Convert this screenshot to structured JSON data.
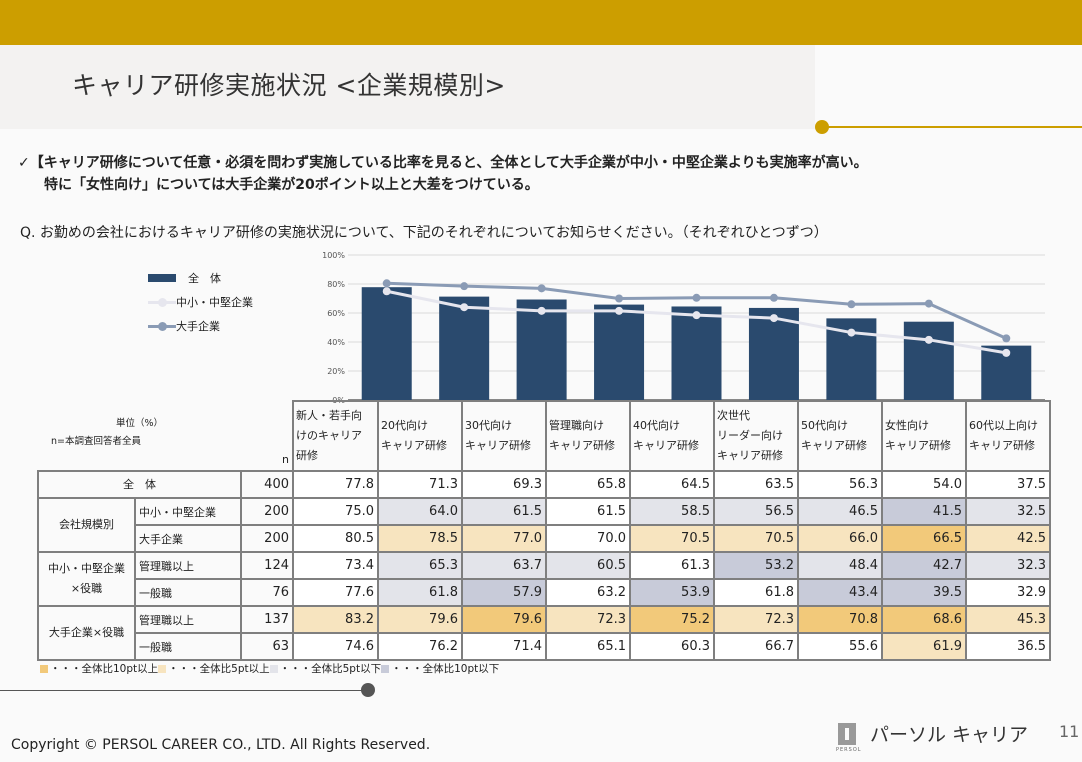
{
  "header": {
    "title": "キャリア研修実施状況 <企業規模別>"
  },
  "summary": {
    "line1": "✓【キャリア研修について任意・必須を問わず実施している比率を見ると、全体として大手企業が中小・中堅企業よりも実施率が高い。",
    "line2": "特に「女性向け」については大手企業が20ポイント以上と大差をつけている。"
  },
  "question": "Q.  お勤めの会社におけるキャリア研修の実施状況について、下記のそれぞれについてお知らせください。（それぞれひとつずつ）",
  "colors": {
    "bar": "#2a4a6e",
    "sme_line": "#e6e6ee",
    "large_line": "#8a9bb5",
    "above10": "#f2c97a",
    "above5": "#f7e4bf",
    "below5": "#e3e4ea",
    "below10": "#c8cbd9",
    "accent": "#cc9e00"
  },
  "chart_data": {
    "type": "bar",
    "categories": [
      "新人・若手向けのキャリア研修",
      "20代向けキャリア研修",
      "30代向けキャリア研修",
      "管理職向けキャリア研修",
      "40代向けキャリア研修",
      "次世代リーダー向けキャリア研修",
      "50代向けキャリア研修",
      "女性向けキャリア研修",
      "60代以上向けキャリア研修"
    ],
    "series": [
      {
        "name": "全　体",
        "kind": "bar",
        "values": [
          77.8,
          71.3,
          69.3,
          65.8,
          64.5,
          63.5,
          56.3,
          54.0,
          37.5
        ]
      },
      {
        "name": "中小・中堅企業",
        "kind": "line",
        "values": [
          75.0,
          64.0,
          61.5,
          61.5,
          58.5,
          56.5,
          46.5,
          41.5,
          32.5
        ]
      },
      {
        "name": "大手企業",
        "kind": "line",
        "values": [
          80.5,
          78.5,
          77.0,
          70.0,
          70.5,
          70.5,
          66.0,
          66.5,
          42.5
        ]
      }
    ],
    "yticks": [
      "0%",
      "20%",
      "40%",
      "60%",
      "80%",
      "100%"
    ],
    "ylim": [
      0,
      100
    ],
    "grid": true,
    "legend": "top-left"
  },
  "table": {
    "unit_label": "単位（%）",
    "n_note": "n=本調査回答者全員",
    "n_header": "n",
    "columns": [
      [
        "新人・若手向",
        "けのキャリア",
        "研修"
      ],
      [
        "20代向け",
        "キャリア研修"
      ],
      [
        "30代向け",
        "キャリア研修"
      ],
      [
        "管理職向け",
        "キャリア研修"
      ],
      [
        "40代向け",
        "キャリア研修"
      ],
      [
        "次世代",
        "リーダー向け",
        "キャリア研修"
      ],
      [
        "50代向け",
        "キャリア研修"
      ],
      [
        "女性向け",
        "キャリア研修"
      ],
      [
        "60代以上向け",
        "キャリア研修"
      ]
    ],
    "groups": {
      "total": "全　体",
      "size": "会社規模別",
      "sme_role": [
        "中小・中堅企業",
        "×役職"
      ],
      "large_role": "大手企業×役職"
    },
    "rows": [
      {
        "label": "全　体",
        "n": "400",
        "values": [
          "77.8",
          "71.3",
          "69.3",
          "65.8",
          "64.5",
          "63.5",
          "56.3",
          "54.0",
          "37.5"
        ],
        "shade": [
          "w",
          "w",
          "w",
          "w",
          "w",
          "w",
          "w",
          "w",
          "w"
        ]
      },
      {
        "label": "中小・中堅企業",
        "n": "200",
        "values": [
          "75.0",
          "64.0",
          "61.5",
          "61.5",
          "58.5",
          "56.5",
          "46.5",
          "41.5",
          "32.5"
        ],
        "shade": [
          "w",
          "d5",
          "d5",
          "w",
          "d5",
          "d5",
          "d5",
          "d10",
          "d5"
        ]
      },
      {
        "label": "大手企業",
        "n": "200",
        "values": [
          "80.5",
          "78.5",
          "77.0",
          "70.0",
          "70.5",
          "70.5",
          "66.0",
          "66.5",
          "42.5"
        ],
        "shade": [
          "w",
          "u5",
          "u5",
          "w",
          "u5",
          "u5",
          "u5",
          "u10",
          "u5"
        ]
      },
      {
        "label": "管理職以上",
        "n": "124",
        "values": [
          "73.4",
          "65.3",
          "63.7",
          "60.5",
          "61.3",
          "53.2",
          "48.4",
          "42.7",
          "32.3"
        ],
        "shade": [
          "w",
          "d5",
          "d5",
          "d5",
          "w",
          "d10",
          "d5",
          "d10",
          "d5"
        ]
      },
      {
        "label": "一般職",
        "n": "76",
        "values": [
          "77.6",
          "61.8",
          "57.9",
          "63.2",
          "53.9",
          "61.8",
          "43.4",
          "39.5",
          "32.9"
        ],
        "shade": [
          "w",
          "d5",
          "d10",
          "w",
          "d10",
          "w",
          "d10",
          "d10",
          "w"
        ]
      },
      {
        "label": "管理職以上",
        "n": "137",
        "values": [
          "83.2",
          "79.6",
          "79.6",
          "72.3",
          "75.2",
          "72.3",
          "70.8",
          "68.6",
          "45.3"
        ],
        "shade": [
          "u5",
          "u5",
          "u10",
          "u5",
          "u10",
          "u5",
          "u10",
          "u10",
          "u5"
        ]
      },
      {
        "label": "一般職",
        "n": "63",
        "values": [
          "74.6",
          "76.2",
          "71.4",
          "65.1",
          "60.3",
          "66.7",
          "55.6",
          "61.9",
          "36.5"
        ],
        "shade": [
          "w",
          "w",
          "w",
          "w",
          "w",
          "w",
          "w",
          "u5",
          "w"
        ]
      }
    ]
  },
  "shade_key": [
    {
      "class": "u10",
      "label": "・・・全体比10pt以上"
    },
    {
      "class": "u5",
      "label": "・・・全体比5pt以上"
    },
    {
      "class": "d5",
      "label": "・・・全体比5pt以下"
    },
    {
      "class": "d10",
      "label": "・・・全体比10pt以下"
    }
  ],
  "footer": {
    "copyright": "Copyright © PERSOL CAREER CO., LTD. All Rights Reserved.",
    "logo_text": "パーソル キャリア",
    "logo_sub": "PERSOL",
    "page": "11"
  }
}
